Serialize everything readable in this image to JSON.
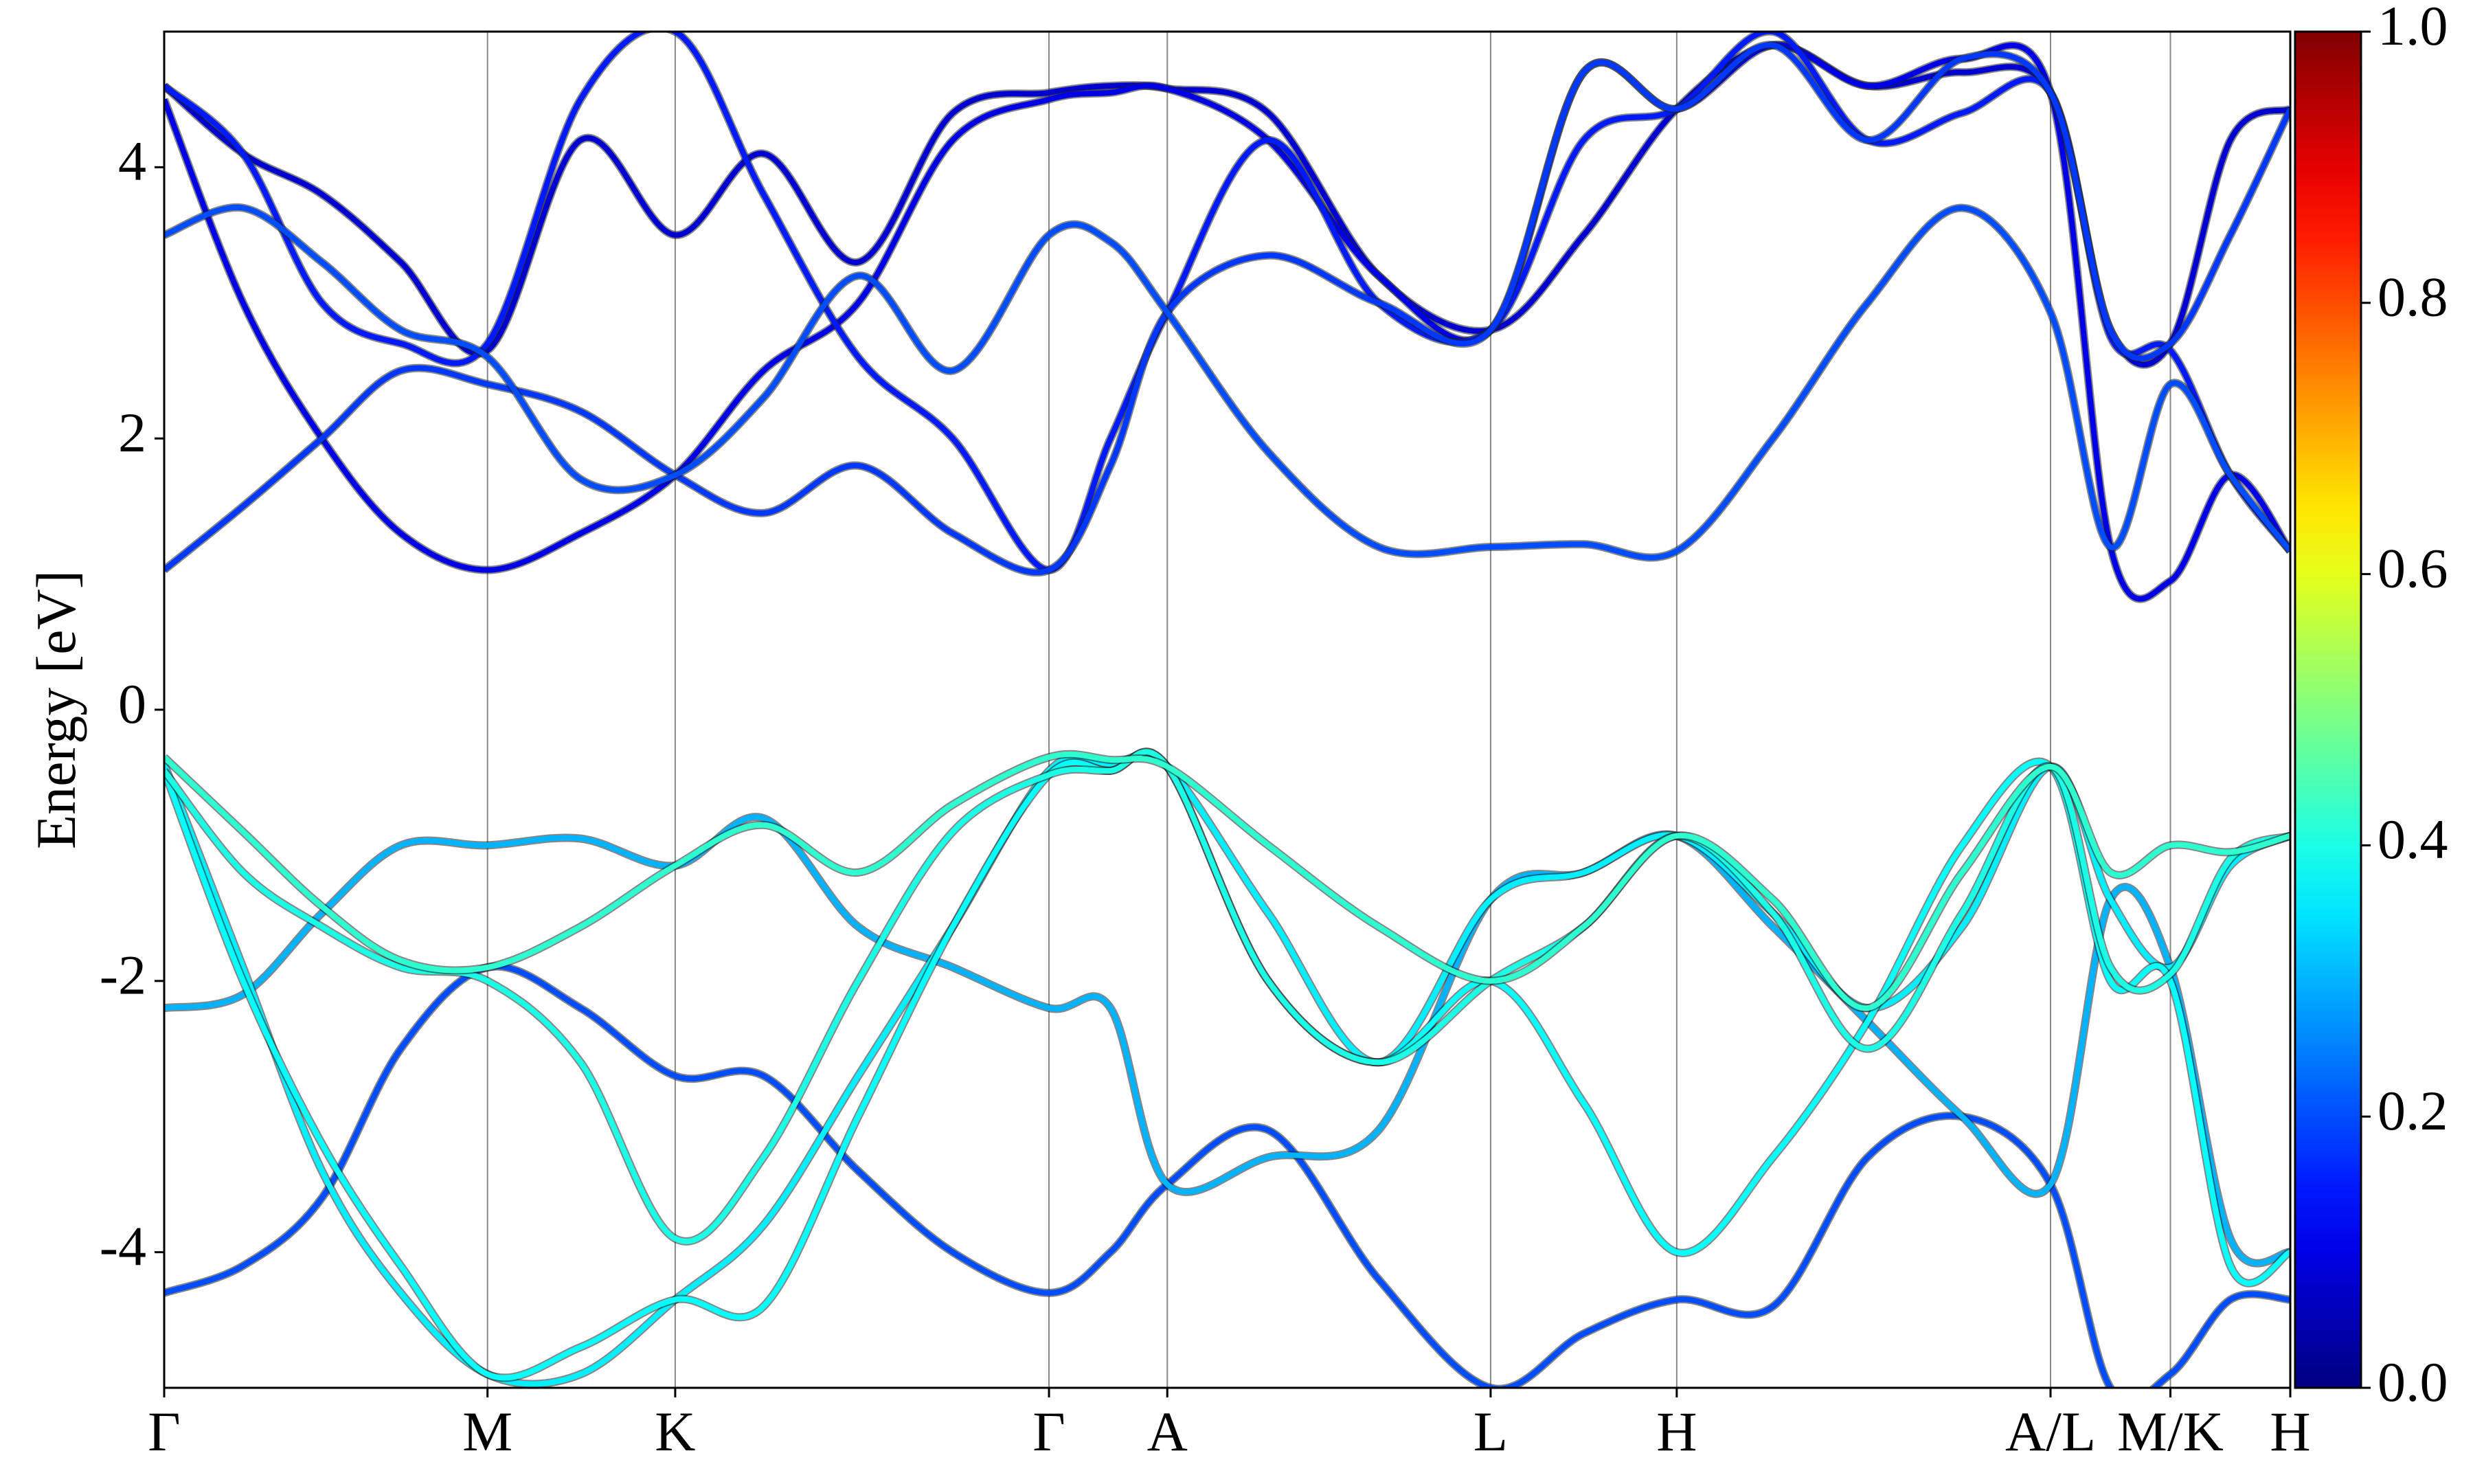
{
  "chart_data": {
    "type": "band",
    "ylabel": "Energy [eV]",
    "xlim": [
      0,
      6.74
    ],
    "xticks": [
      {
        "value": 0,
        "label": "Γ"
      },
      {
        "value": 1.025,
        "label": "M"
      },
      {
        "value": 1.62,
        "label": "K"
      },
      {
        "value": 2.805,
        "label": "Γ"
      },
      {
        "value": 3.18,
        "label": "A"
      },
      {
        "value": 4.205,
        "label": "L"
      },
      {
        "value": 4.795,
        "label": "H"
      },
      {
        "value": 5.98,
        "label": "A/L"
      },
      {
        "value": 6.36,
        "label": "M/K"
      },
      {
        "value": 6.74,
        "label": "H"
      }
    ],
    "ylim": [
      -5,
      5
    ],
    "yticks": [
      -4,
      -2,
      0,
      2,
      4
    ],
    "x": [
      0,
      0.25,
      0.5,
      0.75,
      1.025,
      1.32,
      1.62,
      1.9,
      2.2,
      2.5,
      2.805,
      3.0,
      3.18,
      3.5,
      3.85,
      4.205,
      4.5,
      4.795,
      5.1,
      5.4,
      5.7,
      5.98,
      6.17,
      6.36,
      6.55,
      6.74
    ],
    "colormap": "jet",
    "clim": [
      0,
      1
    ],
    "cticks": [
      {
        "value": 0,
        "label": "0.0"
      },
      {
        "value": 0.2,
        "label": "0.2"
      },
      {
        "value": 0.4,
        "label": "0.4"
      },
      {
        "value": 0.6,
        "label": "0.6"
      },
      {
        "value": 0.8,
        "label": "0.8"
      },
      {
        "value": 1,
        "label": "1.0"
      }
    ],
    "bands": [
      {
        "weight": 0.2,
        "values": [
          -4.3,
          -4.1,
          -3.6,
          -2.5,
          -1.9,
          -2.2,
          -2.7,
          -2.7,
          -3.4,
          -4.0,
          -4.3,
          -4.0,
          -3.5,
          -3.1,
          -4.2,
          -5.0,
          -4.6,
          -4.35,
          -4.4,
          -3.3,
          -3.0,
          -3.5,
          -5.0,
          -4.9,
          -4.35,
          -4.35
        ]
      },
      {
        "weight": 0.3,
        "values": [
          -2.2,
          -2.1,
          -1.5,
          -1.0,
          -1.0,
          -0.95,
          -1.15,
          -0.8,
          -1.6,
          -1.9,
          -2.2,
          -2.2,
          -3.5,
          -3.3,
          -3.1,
          -1.4,
          -1.2,
          -0.93,
          -1.6,
          -2.3,
          -3.0,
          -3.5,
          -1.4,
          -1.9,
          -3.9,
          -4.0
        ]
      },
      {
        "weight": 0.36,
        "values": [
          -0.4,
          -1.9,
          -3.4,
          -4.3,
          -4.9,
          -4.9,
          -4.35,
          -3.8,
          -2.7,
          -1.6,
          -0.45,
          -0.4,
          -0.42,
          -1.5,
          -2.6,
          -1.4,
          -1.2,
          -0.93,
          -1.5,
          -2.2,
          -1.6,
          -0.42,
          -1.4,
          -1.9,
          -1.15,
          -0.93
        ]
      },
      {
        "weight": 0.38,
        "values": [
          -0.45,
          -2.0,
          -3.2,
          -4.1,
          -4.9,
          -4.7,
          -4.35,
          -4.4,
          -3.0,
          -1.6,
          -0.48,
          -0.45,
          -0.42,
          -2.0,
          -2.6,
          -2.0,
          -2.9,
          -4.0,
          -3.3,
          -2.3,
          -1.0,
          -0.42,
          -2.0,
          -2.0,
          -4.1,
          -4.0
        ]
      },
      {
        "weight": 0.4,
        "values": [
          -0.45,
          -1.2,
          -1.6,
          -1.9,
          -2.0,
          -2.6,
          -3.9,
          -3.3,
          -2.0,
          -0.9,
          -0.48,
          -0.45,
          -0.42,
          -2.0,
          -2.6,
          -2.0,
          -1.6,
          -0.93,
          -1.5,
          -2.5,
          -1.5,
          -0.42,
          -1.9,
          -1.95,
          -1.1,
          -0.93
        ]
      },
      {
        "weight": 0.42,
        "values": [
          -0.35,
          -0.9,
          -1.45,
          -1.85,
          -1.9,
          -1.6,
          -1.15,
          -0.85,
          -1.2,
          -0.7,
          -0.35,
          -0.37,
          -0.42,
          -1.0,
          -1.6,
          -2.0,
          -1.6,
          -0.93,
          -1.4,
          -2.2,
          -1.2,
          -0.42,
          -1.2,
          -1.0,
          -1.05,
          -0.93
        ]
      },
      {
        "weight": 0.08,
        "values": [
          4.6,
          4.1,
          3.8,
          3.3,
          2.65,
          4.2,
          3.5,
          4.1,
          3.3,
          4.4,
          4.55,
          4.6,
          4.58,
          4.4,
          3.2,
          2.8,
          3.5,
          4.43,
          4.9,
          4.6,
          4.7,
          4.55,
          2.8,
          2.7,
          4.2,
          4.43
        ]
      },
      {
        "weight": 0.1,
        "values": [
          4.5,
          3.0,
          2.0,
          1.3,
          1.03,
          1.3,
          1.73,
          2.5,
          3.0,
          4.2,
          4.5,
          4.55,
          4.58,
          4.2,
          3.2,
          2.8,
          4.7,
          4.43,
          4.9,
          4.6,
          4.8,
          4.55,
          1.2,
          0.95,
          1.73,
          1.17
        ]
      },
      {
        "weight": 0.15,
        "values": [
          4.6,
          4.1,
          3.0,
          2.7,
          2.7,
          4.5,
          5.0,
          3.8,
          2.6,
          2.0,
          1.03,
          2.0,
          2.93,
          4.2,
          3.0,
          2.8,
          4.2,
          4.43,
          5.0,
          4.2,
          4.4,
          4.55,
          2.75,
          2.65,
          1.73,
          1.17
        ]
      },
      {
        "weight": 0.18,
        "values": [
          1.03,
          1.5,
          2.0,
          2.5,
          2.4,
          2.2,
          1.73,
          1.45,
          1.8,
          1.3,
          1.03,
          1.8,
          2.93,
          3.35,
          3.0,
          2.8,
          4.7,
          4.43,
          4.9,
          4.2,
          4.8,
          4.55,
          2.8,
          2.7,
          3.5,
          4.43
        ]
      },
      {
        "weight": 0.2,
        "values": [
          3.5,
          3.7,
          3.3,
          2.8,
          2.6,
          1.7,
          1.73,
          2.3,
          3.2,
          2.5,
          3.5,
          3.45,
          2.93,
          1.9,
          1.2,
          1.2,
          1.22,
          1.17,
          2.0,
          3.0,
          3.7,
          2.93,
          1.2,
          2.4,
          1.73,
          1.17
        ]
      }
    ]
  }
}
